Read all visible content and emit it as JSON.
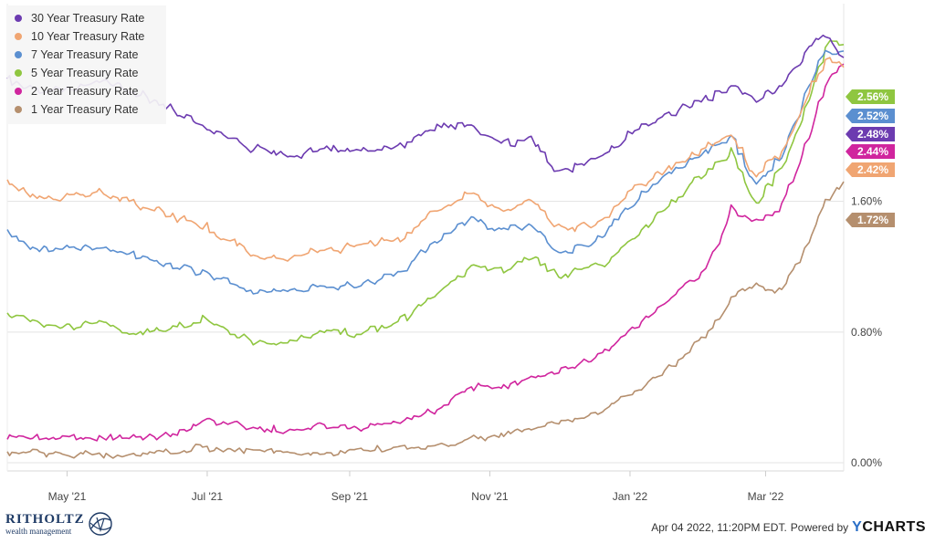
{
  "chart_data": {
    "type": "line",
    "title": "",
    "xlabel": "",
    "ylabel": "",
    "x_range": [
      "2021-04-05",
      "2022-04-04"
    ],
    "x_ticks": [
      {
        "date": "2021-05-01",
        "label": "May '21"
      },
      {
        "date": "2021-07-01",
        "label": "Jul '21"
      },
      {
        "date": "2021-09-01",
        "label": "Sep '21"
      },
      {
        "date": "2021-11-01",
        "label": "Nov '21"
      },
      {
        "date": "2022-01-01",
        "label": "Jan '22"
      },
      {
        "date": "2022-03-01",
        "label": "Mar '22"
      }
    ],
    "ylim": [
      -0.05,
      2.81
    ],
    "y_ticks": [
      {
        "value": 0.0,
        "label": "0.00%"
      },
      {
        "value": 0.8,
        "label": "0.80%"
      },
      {
        "value": 1.6,
        "label": "1.60%"
      }
    ],
    "y_axis_side": "right",
    "grid": "horizontal",
    "legend_position": "top-left",
    "series": [
      {
        "name": "30 Year Treasury Rate",
        "color": "#6c3bb0",
        "end_label": "2.48%",
        "points": [
          [
            "2021-04-05",
            2.35
          ],
          [
            "2021-04-20",
            2.27
          ],
          [
            "2021-05-05",
            2.28
          ],
          [
            "2021-05-15",
            2.35
          ],
          [
            "2021-06-01",
            2.26
          ],
          [
            "2021-06-15",
            2.17
          ],
          [
            "2021-07-01",
            2.05
          ],
          [
            "2021-07-20",
            1.93
          ],
          [
            "2021-08-05",
            1.88
          ],
          [
            "2021-08-20",
            1.92
          ],
          [
            "2021-09-05",
            1.91
          ],
          [
            "2021-09-25",
            1.94
          ],
          [
            "2021-10-10",
            2.06
          ],
          [
            "2021-10-25",
            2.08
          ],
          [
            "2021-11-05",
            1.95
          ],
          [
            "2021-11-20",
            1.97
          ],
          [
            "2021-12-01",
            1.78
          ],
          [
            "2021-12-20",
            1.86
          ],
          [
            "2022-01-05",
            2.05
          ],
          [
            "2022-01-20",
            2.14
          ],
          [
            "2022-02-05",
            2.24
          ],
          [
            "2022-02-15",
            2.32
          ],
          [
            "2022-02-25",
            2.22
          ],
          [
            "2022-03-08",
            2.3
          ],
          [
            "2022-03-20",
            2.52
          ],
          [
            "2022-03-28",
            2.62
          ],
          [
            "2022-04-04",
            2.48
          ]
        ]
      },
      {
        "name": "10 Year Treasury Rate",
        "color": "#f0a572",
        "end_label": "2.42%",
        "points": [
          [
            "2021-04-05",
            1.72
          ],
          [
            "2021-04-20",
            1.62
          ],
          [
            "2021-05-05",
            1.63
          ],
          [
            "2021-05-15",
            1.65
          ],
          [
            "2021-06-01",
            1.59
          ],
          [
            "2021-06-15",
            1.52
          ],
          [
            "2021-07-01",
            1.44
          ],
          [
            "2021-07-20",
            1.28
          ],
          [
            "2021-08-05",
            1.24
          ],
          [
            "2021-08-20",
            1.3
          ],
          [
            "2021-09-05",
            1.33
          ],
          [
            "2021-09-25",
            1.38
          ],
          [
            "2021-10-10",
            1.56
          ],
          [
            "2021-10-25",
            1.65
          ],
          [
            "2021-11-05",
            1.55
          ],
          [
            "2021-11-20",
            1.6
          ],
          [
            "2021-12-01",
            1.44
          ],
          [
            "2021-12-20",
            1.47
          ],
          [
            "2022-01-05",
            1.7
          ],
          [
            "2022-01-20",
            1.82
          ],
          [
            "2022-02-05",
            1.94
          ],
          [
            "2022-02-15",
            2.0
          ],
          [
            "2022-02-25",
            1.75
          ],
          [
            "2022-03-08",
            1.88
          ],
          [
            "2022-03-20",
            2.25
          ],
          [
            "2022-03-28",
            2.48
          ],
          [
            "2022-04-04",
            2.42
          ]
        ]
      },
      {
        "name": "7 Year Treasury Rate",
        "color": "#5b8fd0",
        "end_label": "2.52%",
        "points": [
          [
            "2021-04-05",
            1.4
          ],
          [
            "2021-04-20",
            1.3
          ],
          [
            "2021-05-05",
            1.31
          ],
          [
            "2021-05-15",
            1.33
          ],
          [
            "2021-06-01",
            1.27
          ],
          [
            "2021-06-15",
            1.2
          ],
          [
            "2021-07-01",
            1.17
          ],
          [
            "2021-07-20",
            1.05
          ],
          [
            "2021-08-05",
            1.05
          ],
          [
            "2021-08-20",
            1.08
          ],
          [
            "2021-09-05",
            1.09
          ],
          [
            "2021-09-25",
            1.18
          ],
          [
            "2021-10-10",
            1.38
          ],
          [
            "2021-10-25",
            1.5
          ],
          [
            "2021-11-05",
            1.43
          ],
          [
            "2021-11-20",
            1.45
          ],
          [
            "2021-12-01",
            1.28
          ],
          [
            "2021-12-20",
            1.37
          ],
          [
            "2022-01-05",
            1.63
          ],
          [
            "2022-01-20",
            1.78
          ],
          [
            "2022-02-05",
            1.93
          ],
          [
            "2022-02-15",
            2.0
          ],
          [
            "2022-02-25",
            1.71
          ],
          [
            "2022-03-08",
            1.85
          ],
          [
            "2022-03-20",
            2.28
          ],
          [
            "2022-03-28",
            2.52
          ],
          [
            "2022-04-04",
            2.52
          ]
        ]
      },
      {
        "name": "5 Year Treasury Rate",
        "color": "#8fc640",
        "end_label": "2.56%",
        "points": [
          [
            "2021-04-05",
            0.92
          ],
          [
            "2021-04-20",
            0.84
          ],
          [
            "2021-05-05",
            0.83
          ],
          [
            "2021-05-15",
            0.85
          ],
          [
            "2021-06-01",
            0.79
          ],
          [
            "2021-06-15",
            0.83
          ],
          [
            "2021-07-01",
            0.88
          ],
          [
            "2021-07-20",
            0.75
          ],
          [
            "2021-08-05",
            0.72
          ],
          [
            "2021-08-20",
            0.8
          ],
          [
            "2021-09-05",
            0.79
          ],
          [
            "2021-09-25",
            0.88
          ],
          [
            "2021-10-10",
            1.05
          ],
          [
            "2021-10-25",
            1.2
          ],
          [
            "2021-11-05",
            1.18
          ],
          [
            "2021-11-20",
            1.25
          ],
          [
            "2021-12-01",
            1.14
          ],
          [
            "2021-12-20",
            1.21
          ],
          [
            "2022-01-05",
            1.4
          ],
          [
            "2022-01-20",
            1.58
          ],
          [
            "2022-02-05",
            1.8
          ],
          [
            "2022-02-15",
            1.9
          ],
          [
            "2022-02-25",
            1.58
          ],
          [
            "2022-03-08",
            1.8
          ],
          [
            "2022-03-20",
            2.2
          ],
          [
            "2022-03-28",
            2.56
          ],
          [
            "2022-04-04",
            2.56
          ]
        ]
      },
      {
        "name": "2 Year Treasury Rate",
        "color": "#d0259e",
        "end_label": "2.44%",
        "points": [
          [
            "2021-04-05",
            0.16
          ],
          [
            "2021-04-20",
            0.15
          ],
          [
            "2021-05-05",
            0.15
          ],
          [
            "2021-05-15",
            0.15
          ],
          [
            "2021-06-01",
            0.15
          ],
          [
            "2021-06-15",
            0.17
          ],
          [
            "2021-07-01",
            0.25
          ],
          [
            "2021-07-20",
            0.22
          ],
          [
            "2021-08-05",
            0.19
          ],
          [
            "2021-08-20",
            0.23
          ],
          [
            "2021-09-05",
            0.21
          ],
          [
            "2021-09-25",
            0.27
          ],
          [
            "2021-10-10",
            0.32
          ],
          [
            "2021-10-25",
            0.47
          ],
          [
            "2021-11-05",
            0.45
          ],
          [
            "2021-11-20",
            0.52
          ],
          [
            "2021-12-01",
            0.55
          ],
          [
            "2021-12-20",
            0.67
          ],
          [
            "2022-01-05",
            0.85
          ],
          [
            "2022-01-20",
            1.02
          ],
          [
            "2022-02-05",
            1.22
          ],
          [
            "2022-02-15",
            1.56
          ],
          [
            "2022-02-25",
            1.48
          ],
          [
            "2022-03-08",
            1.55
          ],
          [
            "2022-03-20",
            1.97
          ],
          [
            "2022-03-28",
            2.32
          ],
          [
            "2022-04-04",
            2.44
          ]
        ]
      },
      {
        "name": "1 Year Treasury Rate",
        "color": "#b58f6e",
        "end_label": "1.72%",
        "points": [
          [
            "2021-04-05",
            0.06
          ],
          [
            "2021-04-20",
            0.06
          ],
          [
            "2021-05-05",
            0.05
          ],
          [
            "2021-05-15",
            0.05
          ],
          [
            "2021-06-01",
            0.05
          ],
          [
            "2021-06-15",
            0.07
          ],
          [
            "2021-07-01",
            0.09
          ],
          [
            "2021-07-20",
            0.07
          ],
          [
            "2021-08-05",
            0.07
          ],
          [
            "2021-08-20",
            0.06
          ],
          [
            "2021-09-05",
            0.07
          ],
          [
            "2021-09-25",
            0.09
          ],
          [
            "2021-10-10",
            0.1
          ],
          [
            "2021-10-25",
            0.14
          ],
          [
            "2021-11-05",
            0.16
          ],
          [
            "2021-11-20",
            0.21
          ],
          [
            "2021-12-01",
            0.25
          ],
          [
            "2021-12-20",
            0.31
          ],
          [
            "2022-01-05",
            0.45
          ],
          [
            "2022-01-20",
            0.6
          ],
          [
            "2022-02-05",
            0.8
          ],
          [
            "2022-02-15",
            1.01
          ],
          [
            "2022-02-25",
            1.08
          ],
          [
            "2022-03-08",
            1.05
          ],
          [
            "2022-03-20",
            1.35
          ],
          [
            "2022-03-28",
            1.61
          ],
          [
            "2022-04-04",
            1.72
          ]
        ]
      }
    ]
  },
  "legend": {
    "items": [
      {
        "label": "30 Year Treasury Rate",
        "color": "#6c3bb0"
      },
      {
        "label": "10 Year Treasury Rate",
        "color": "#f0a572"
      },
      {
        "label": "7 Year Treasury Rate",
        "color": "#5b8fd0"
      },
      {
        "label": "5 Year Treasury Rate",
        "color": "#8fc640"
      },
      {
        "label": "2 Year Treasury Rate",
        "color": "#d0259e"
      },
      {
        "label": "1 Year Treasury Rate",
        "color": "#b58f6e"
      }
    ]
  },
  "end_labels_order": [
    {
      "label": "2.56%",
      "color": "#8fc640"
    },
    {
      "label": "2.52%",
      "color": "#5b8fd0"
    },
    {
      "label": "2.48%",
      "color": "#6c3bb0"
    },
    {
      "label": "2.44%",
      "color": "#d0259e"
    },
    {
      "label": "2.42%",
      "color": "#f0a572"
    },
    {
      "label": "1.72%",
      "color": "#b58f6e"
    }
  ],
  "footer": {
    "logo_brand": "RITHOLTZ",
    "logo_tagline": "wealth management",
    "timestamp": "Apr 04 2022, 11:20PM EDT.",
    "powered_by": "Powered by",
    "ycharts_y": "Y",
    "ycharts_rest": "CHARTS"
  }
}
